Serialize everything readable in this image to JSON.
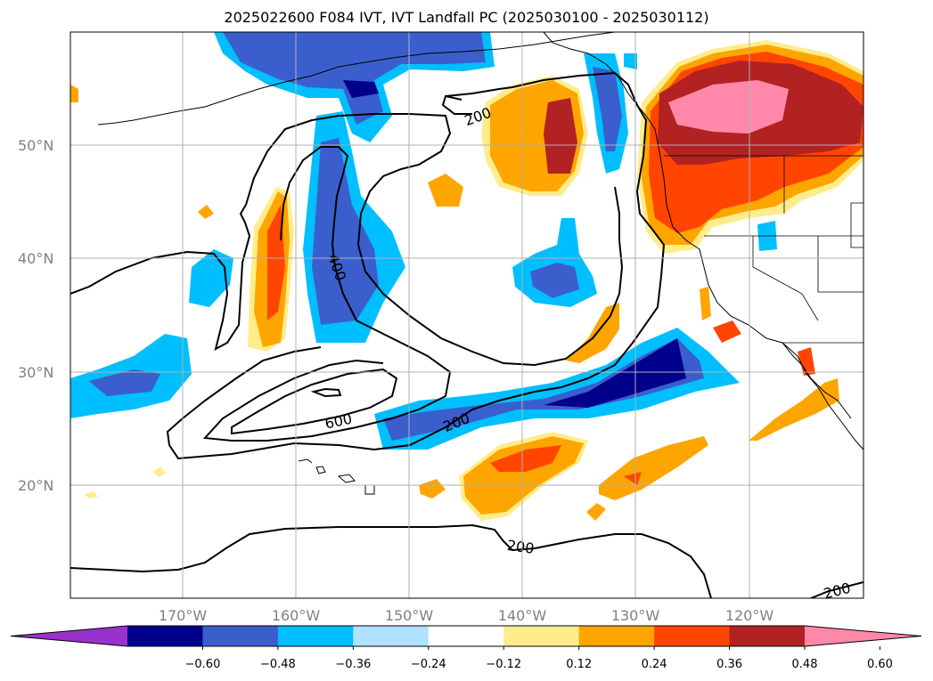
{
  "title": "2025022600 F084 IVT, IVT Landfall PC (2025030100 - 2025030112)",
  "lat_labels": [
    "50°N",
    "40°N",
    "30°N",
    "20°N"
  ],
  "lon_labels": [
    "170°W",
    "160°W",
    "150°W",
    "140°W",
    "130°W",
    "120°W"
  ],
  "colorbar": {
    "ticks": [
      "−0.60",
      "−0.48",
      "−0.36",
      "−0.24",
      "−0.12",
      "0.12",
      "0.24",
      "0.36",
      "0.48",
      "0.60"
    ],
    "colors": [
      "#9932cc",
      "#00008b",
      "#3a5fcd",
      "#00bfff",
      "#b0e2ff",
      "#ffffff",
      "#ffec8b",
      "#ffa500",
      "#ff4500",
      "#b22222",
      "#ff88aa"
    ]
  },
  "contour_labels": [
    "200",
    "400",
    "600",
    "200",
    "200",
    "200"
  ],
  "colors": {
    "neg_dark": "#00008b",
    "neg_mid": "#3a5fcd",
    "neg_light": "#00bfff",
    "neg_pale": "#b0e2ff",
    "pos_pale": "#ffec8b",
    "pos_orange": "#ffa500",
    "pos_red": "#ff4500",
    "pos_dark": "#b22222",
    "pos_pink": "#ff88aa"
  }
}
